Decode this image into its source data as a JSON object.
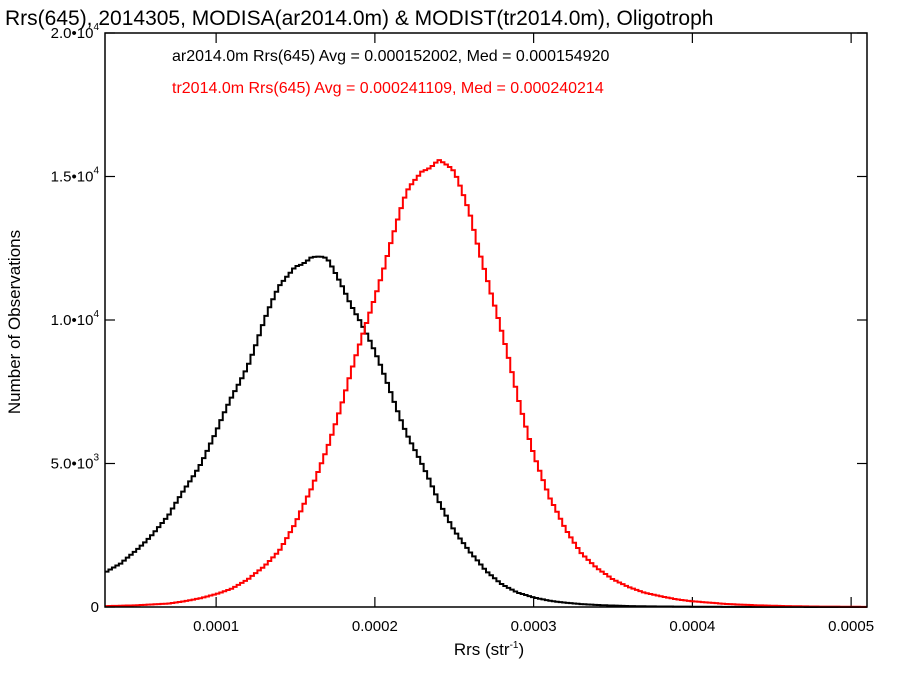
{
  "chart_data": {
    "type": "line",
    "title": "Rrs(645), 2014305, MODISA(ar2014.0m) & MODIST(tr2014.0m), Oligotroph",
    "xlabel_main": "Rrs (str",
    "xlabel_sup": "-1",
    "xlabel_close": ")",
    "ylabel": "Number of Observations",
    "xlim": [
      3e-05,
      0.00051
    ],
    "ylim": [
      0,
      20000
    ],
    "x_ticks": [
      {
        "value": 0.0001,
        "label": "0.0001"
      },
      {
        "value": 0.0002,
        "label": "0.0002"
      },
      {
        "value": 0.0003,
        "label": "0.0003"
      },
      {
        "value": 0.0004,
        "label": "0.0004"
      },
      {
        "value": 0.0005,
        "label": "0.0005"
      }
    ],
    "y_ticks": [
      {
        "value": 0,
        "mant": "0",
        "exp": ""
      },
      {
        "value": 5000,
        "mant": "5.0•10",
        "exp": "3"
      },
      {
        "value": 10000,
        "mant": "1.0•10",
        "exp": "4"
      },
      {
        "value": 15000,
        "mant": "1.5•10",
        "exp": "4"
      },
      {
        "value": 20000,
        "mant": "2.0•10",
        "exp": "4"
      }
    ],
    "legend": [
      {
        "text": "ar2014.0m Rrs(645) Avg = 0.000152002, Med = 0.000154920",
        "color": "#000000"
      },
      {
        "text": "tr2014.0m Rrs(645) Avg = 0.000241109, Med = 0.000240214",
        "color": "#ff0000"
      }
    ],
    "series": [
      {
        "color": "#000000",
        "x": [
          3e-05,
          4e-05,
          5e-05,
          6e-05,
          7e-05,
          8e-05,
          9e-05,
          0.0001,
          0.00011,
          0.00012,
          0.00013,
          0.00014,
          0.00015,
          0.00016,
          0.00017,
          0.00018,
          0.00019,
          0.0002,
          0.00021,
          0.00022,
          0.00023,
          0.00024,
          0.00025,
          0.00026,
          0.00027,
          0.00028,
          0.00029,
          0.0003,
          0.00031,
          0.00032,
          0.00033,
          0.00034,
          0.00035,
          0.00036,
          0.00038,
          0.0004,
          0.00042,
          0.00045,
          0.00048,
          0.00051
        ],
        "y": [
          1200,
          1500,
          2000,
          2550,
          3150,
          4100,
          5000,
          6050,
          7300,
          8500,
          9900,
          11100,
          12000,
          12200,
          12000,
          11200,
          10100,
          8800,
          7500,
          6100,
          4900,
          3700,
          2700,
          1900,
          1250,
          800,
          500,
          330,
          220,
          150,
          100,
          70,
          50,
          30,
          18,
          10,
          6,
          3,
          2,
          1
        ]
      },
      {
        "color": "#ff0000",
        "x": [
          3e-05,
          5e-05,
          7e-05,
          8e-05,
          9e-05,
          0.0001,
          0.00011,
          0.00012,
          0.00013,
          0.00014,
          0.00015,
          0.00016,
          0.00017,
          0.00018,
          0.00019,
          0.0002,
          0.00021,
          0.00022,
          0.00023,
          0.00024,
          0.00025,
          0.00026,
          0.00027,
          0.00028,
          0.00029,
          0.0003,
          0.00031,
          0.00032,
          0.00033,
          0.00034,
          0.00035,
          0.00036,
          0.00037,
          0.00038,
          0.00039,
          0.0004,
          0.00042,
          0.00044,
          0.00046,
          0.00048,
          0.00051
        ],
        "y": [
          30,
          60,
          120,
          200,
          300,
          450,
          650,
          950,
          1400,
          2000,
          2900,
          4100,
          5600,
          7200,
          9000,
          10900,
          12700,
          14300,
          15300,
          15700,
          15000,
          13700,
          11700,
          9500,
          7300,
          5400,
          3800,
          2700,
          1900,
          1350,
          950,
          700,
          500,
          370,
          270,
          200,
          110,
          60,
          30,
          15,
          5
        ]
      }
    ]
  }
}
